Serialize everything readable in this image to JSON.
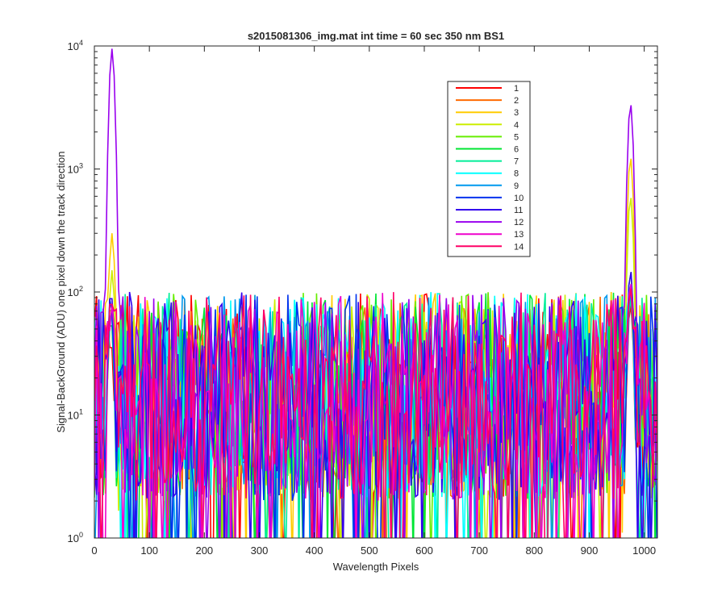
{
  "chart_data": {
    "type": "line",
    "title": "s2015081306_img.mat int time = 60 sec  350 nm BS1",
    "xlabel": "Wavelength Pixels",
    "ylabel": "Signal-BackGround (ADU) one pixel down the track direction",
    "xlim": [
      0,
      1024
    ],
    "ylim": [
      1,
      10000
    ],
    "yscale": "log",
    "grid": false,
    "legend_position": "top-right (inside axes)",
    "x_ticks": [
      "0",
      "100",
      "200",
      "300",
      "400",
      "500",
      "600",
      "700",
      "800",
      "900",
      "1000"
    ],
    "y_ticks": [
      {
        "base": "10",
        "exp": "0"
      },
      {
        "base": "10",
        "exp": "1"
      },
      {
        "base": "10",
        "exp": "2"
      },
      {
        "base": "10",
        "exp": "3"
      },
      {
        "base": "10",
        "exp": "4"
      }
    ],
    "x_sampling_step": 4,
    "noise_floor_range": [
      2,
      100
    ],
    "series": [
      {
        "name": "1",
        "color": "#ff0000",
        "peaks": [
          [
            30,
            40
          ],
          [
            975,
            80
          ]
        ]
      },
      {
        "name": "2",
        "color": "#ff6a00",
        "peaks": [
          [
            30,
            60
          ],
          [
            975,
            100
          ]
        ]
      },
      {
        "name": "3",
        "color": "#ffcc00",
        "peaks": [
          [
            32,
            300
          ],
          [
            975,
            1250
          ]
        ]
      },
      {
        "name": "4",
        "color": "#ccee00",
        "peaks": [
          [
            32,
            150
          ],
          [
            975,
            600
          ]
        ]
      },
      {
        "name": "5",
        "color": "#66ee00",
        "peaks": [
          [
            30,
            80
          ],
          [
            975,
            150
          ]
        ]
      },
      {
        "name": "6",
        "color": "#00e633",
        "peaks": [
          [
            30,
            60
          ],
          [
            975,
            100
          ]
        ]
      },
      {
        "name": "7",
        "color": "#00ee99",
        "peaks": [
          [
            30,
            70
          ],
          [
            975,
            90
          ]
        ]
      },
      {
        "name": "8",
        "color": "#00ffff",
        "peaks": [
          [
            30,
            90
          ],
          [
            975,
            120
          ]
        ]
      },
      {
        "name": "9",
        "color": "#0099ee",
        "peaks": [
          [
            30,
            70
          ],
          [
            975,
            100
          ]
        ]
      },
      {
        "name": "10",
        "color": "#0033ee",
        "peaks": [
          [
            30,
            80
          ],
          [
            975,
            110
          ]
        ]
      },
      {
        "name": "11",
        "color": "#3300ee",
        "peaks": [
          [
            30,
            100
          ],
          [
            975,
            150
          ]
        ]
      },
      {
        "name": "12",
        "color": "#9900ee",
        "peaks": [
          [
            32,
            9500
          ],
          [
            975,
            3400
          ]
        ]
      },
      {
        "name": "13",
        "color": "#ee00cc",
        "peaks": [
          [
            32,
            80
          ],
          [
            975,
            120
          ]
        ]
      },
      {
        "name": "14",
        "color": "#ff0066",
        "peaks": [
          [
            30,
            90
          ],
          [
            975,
            110
          ]
        ]
      }
    ]
  }
}
